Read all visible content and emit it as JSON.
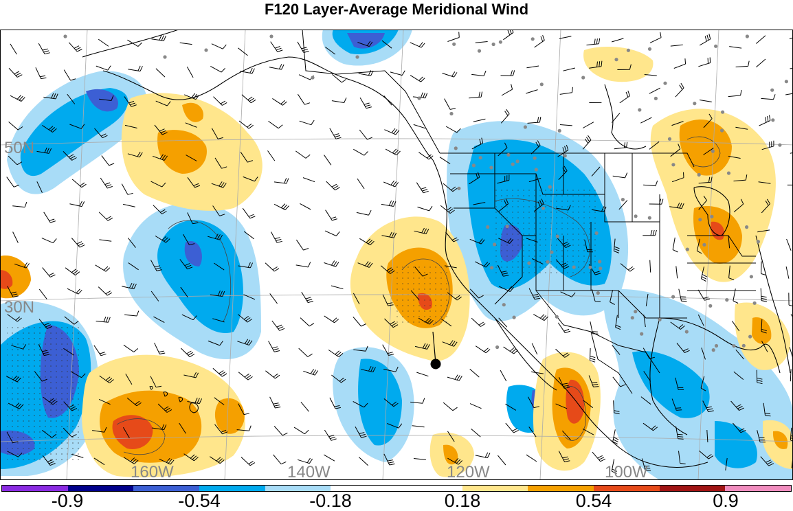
{
  "title": "F120 Layer-Average Meridional Wind",
  "map": {
    "lat_labels": [
      "50N",
      "30N"
    ],
    "lon_labels": [
      "160W",
      "140W",
      "120W",
      "100W"
    ],
    "point_marker": "black-dot-marker"
  },
  "colorbar": {
    "colors": [
      "#8a2be2",
      "#00008b",
      "#3c5fd4",
      "#00aaee",
      "#a8dcf7",
      "#ffffff",
      "#ffffff",
      "#ffe68c",
      "#f5a000",
      "#e64a19",
      "#a01414",
      "#f08cbe"
    ],
    "labels": [
      "-0.9",
      "-0.54",
      "-0.18",
      "0.18",
      "0.54",
      "0.9"
    ]
  },
  "colors": {
    "strong_negative": "#3c5fd4",
    "negative": "#00aaee",
    "weak_negative": "#a8dcf7",
    "weak_positive": "#ffe68c",
    "positive": "#f5a000",
    "strong_positive": "#e64a19"
  }
}
